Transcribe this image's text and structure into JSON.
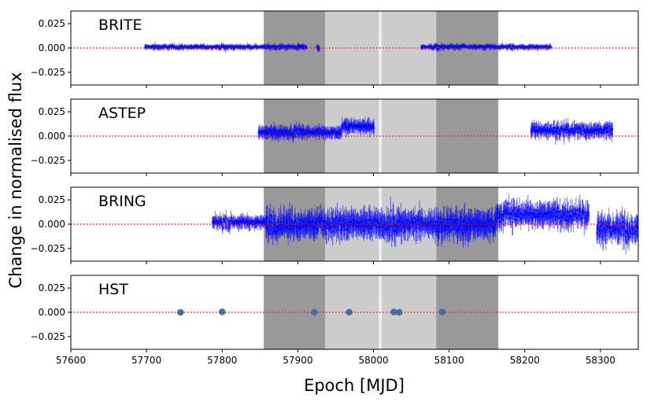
{
  "figure": {
    "ylabel": "Change in normalised flux",
    "xlabel": "Epoch [MJD]"
  },
  "colors": {
    "data_series": "#0000ff",
    "hst_points": "#3a76af",
    "zero_line": "#ff0000",
    "dark_band": "#999999",
    "light_band": "#cccccc",
    "gap_line": "#eeeeee"
  },
  "chart_data": [
    {
      "type": "scatter",
      "title": "BRITE",
      "xlim": [
        57600,
        58350
      ],
      "ylim": [
        -0.038,
        0.038
      ],
      "yticks": [
        0.025,
        0.0,
        -0.025
      ],
      "ytick_labels": [
        "0.025",
        "0.000",
        "−0.025"
      ],
      "xticks": [
        57600,
        57700,
        57800,
        57900,
        58000,
        58100,
        58200,
        58300
      ],
      "xtick_labels": [],
      "segments": [
        {
          "x_start": 57698,
          "x_end": 57912,
          "center": 0.001,
          "amplitude": 0.004
        },
        {
          "x_start": 57925,
          "x_end": 57929,
          "center": 0.0,
          "amplitude": 0.005
        },
        {
          "x_start": 58063,
          "x_end": 58235,
          "center": 0.001,
          "amplitude": 0.004
        }
      ],
      "shading": [
        {
          "x0": 57855,
          "x1": 57936,
          "shade": "dark"
        },
        {
          "x0": 57936,
          "x1": 58083,
          "shade": "light"
        },
        {
          "x0": 58083,
          "x1": 58165,
          "shade": "dark"
        }
      ],
      "gap_line_x": 58009,
      "zero_line": 0.0
    },
    {
      "type": "scatter",
      "title": "ASTEP",
      "xlim": [
        57600,
        58350
      ],
      "ylim": [
        -0.038,
        0.038
      ],
      "yticks": [
        0.025,
        0.0,
        -0.025
      ],
      "ytick_labels": [
        "0.025",
        "0.000",
        "−0.025"
      ],
      "xticks": [
        57600,
        57700,
        57800,
        57900,
        58000,
        58100,
        58200,
        58300
      ],
      "xtick_labels": [],
      "segments": [
        {
          "x_start": 57848,
          "x_end": 57958,
          "center": 0.004,
          "amplitude": 0.009
        },
        {
          "x_start": 57958,
          "x_end": 58001,
          "center": 0.01,
          "amplitude": 0.01
        },
        {
          "x_start": 58208,
          "x_end": 58316,
          "center": 0.006,
          "amplitude": 0.011
        }
      ],
      "shading": [
        {
          "x0": 57855,
          "x1": 57936,
          "shade": "dark"
        },
        {
          "x0": 57936,
          "x1": 58083,
          "shade": "light"
        },
        {
          "x0": 58083,
          "x1": 58165,
          "shade": "dark"
        }
      ],
      "gap_line_x": 58009,
      "zero_line": 0.0
    },
    {
      "type": "scatter",
      "title": "BRING",
      "xlim": [
        57600,
        58350
      ],
      "ylim": [
        -0.038,
        0.038
      ],
      "yticks": [
        0.025,
        0.0,
        -0.025
      ],
      "ytick_labels": [
        "0.025",
        "0.000",
        "−0.025"
      ],
      "xticks": [
        57600,
        57700,
        57800,
        57900,
        58000,
        58100,
        58200,
        58300
      ],
      "xtick_labels": [],
      "segments": [
        {
          "x_start": 57787,
          "x_end": 57858,
          "center": 0.002,
          "amplitude": 0.01
        },
        {
          "x_start": 57858,
          "x_end": 58162,
          "center": 0.0,
          "amplitude": 0.02
        },
        {
          "x_start": 58162,
          "x_end": 58285,
          "center": 0.01,
          "amplitude": 0.018
        },
        {
          "x_start": 58295,
          "x_end": 58350,
          "center": -0.005,
          "amplitude": 0.02
        }
      ],
      "shading": [
        {
          "x0": 57855,
          "x1": 57936,
          "shade": "dark"
        },
        {
          "x0": 57936,
          "x1": 58083,
          "shade": "light"
        },
        {
          "x0": 58083,
          "x1": 58165,
          "shade": "dark"
        }
      ],
      "gap_line_x": 58009,
      "zero_line": 0.0
    },
    {
      "type": "scatter",
      "title": "HST",
      "xlim": [
        57600,
        58350
      ],
      "ylim": [
        -0.038,
        0.038
      ],
      "yticks": [
        0.025,
        0.0,
        -0.025
      ],
      "ytick_labels": [
        "0.025",
        "0.000",
        "−0.025"
      ],
      "xticks": [
        57600,
        57700,
        57800,
        57900,
        58000,
        58100,
        58200,
        58300
      ],
      "xtick_labels": [
        "57600",
        "57700",
        "57800",
        "57900",
        "58000",
        "58100",
        "58200",
        "58300"
      ],
      "points": [
        {
          "x": 57745,
          "y": 0.0
        },
        {
          "x": 57800,
          "y": 0.0005
        },
        {
          "x": 57922,
          "y": 0.0
        },
        {
          "x": 57968,
          "y": 0.0002
        },
        {
          "x": 58027,
          "y": 0.0003
        },
        {
          "x": 58034,
          "y": 0.0
        },
        {
          "x": 58091,
          "y": 0.0004
        }
      ],
      "shading": [
        {
          "x0": 57855,
          "x1": 57936,
          "shade": "dark"
        },
        {
          "x0": 57936,
          "x1": 58083,
          "shade": "light"
        },
        {
          "x0": 58083,
          "x1": 58165,
          "shade": "dark"
        }
      ],
      "gap_line_x": 58009,
      "zero_line": 0.0
    }
  ]
}
